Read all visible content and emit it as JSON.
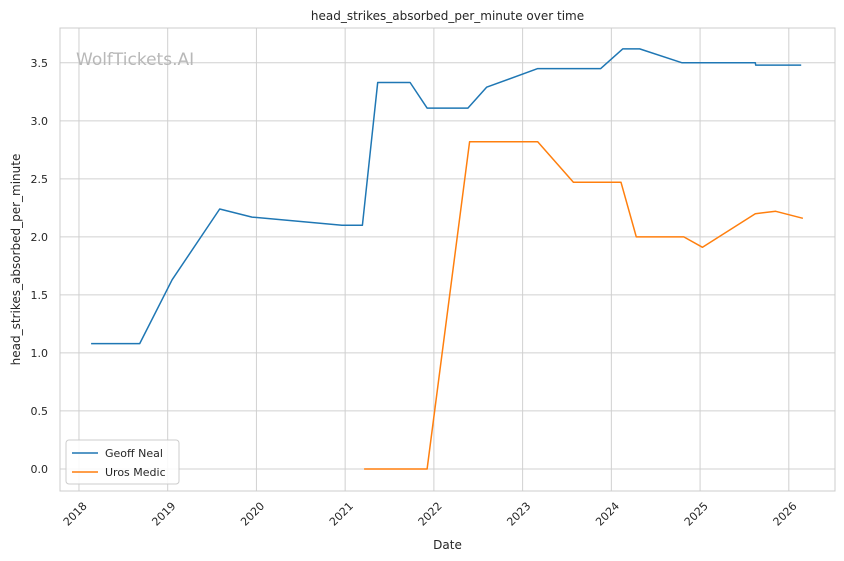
{
  "chart_data": {
    "type": "line",
    "title": "head_strikes_absorbed_per_minute over time",
    "xlabel": "Date",
    "ylabel": "head_strikes_absorbed_per_minute",
    "watermark": "WolfTickets.AI",
    "x_ticks": [
      "2018",
      "2019",
      "2020",
      "2021",
      "2022",
      "2023",
      "2024",
      "2025",
      "2026"
    ],
    "y_ticks": [
      "0.0",
      "0.5",
      "1.0",
      "1.5",
      "2.0",
      "2.5",
      "3.0",
      "3.5"
    ],
    "xlim": [
      "2017-10-15",
      "2026-07-10"
    ],
    "ylim": [
      -0.19,
      3.8
    ],
    "grid": true,
    "legend_position": "lower-left",
    "series": [
      {
        "name": "Geoff Neal",
        "color": "#1f77b4",
        "points": [
          [
            "2018-02-20",
            1.08
          ],
          [
            "2018-09-08",
            1.08
          ],
          [
            "2019-01-19",
            1.63
          ],
          [
            "2019-08-03",
            2.24
          ],
          [
            "2019-12-14",
            2.17
          ],
          [
            "2020-12-19",
            2.1
          ],
          [
            "2021-03-13",
            2.1
          ],
          [
            "2021-05-15",
            3.33
          ],
          [
            "2021-09-25",
            3.33
          ],
          [
            "2021-12-04",
            3.11
          ],
          [
            "2022-05-21",
            3.11
          ],
          [
            "2022-08-06",
            3.29
          ],
          [
            "2023-03-04",
            3.45
          ],
          [
            "2023-11-18",
            3.45
          ],
          [
            "2024-02-17",
            3.62
          ],
          [
            "2024-04-27",
            3.62
          ],
          [
            "2024-10-19",
            3.5
          ],
          [
            "2025-08-16",
            3.5
          ],
          [
            "2025-08-18",
            3.48
          ],
          [
            "2026-02-21",
            3.48
          ]
        ]
      },
      {
        "name": "Uros Medic",
        "color": "#ff7f0e",
        "points": [
          [
            "2021-03-20",
            0.0
          ],
          [
            "2021-12-04",
            0.0
          ],
          [
            "2022-05-28",
            2.82
          ],
          [
            "2023-03-04",
            2.82
          ],
          [
            "2023-07-29",
            2.47
          ],
          [
            "2024-02-10",
            2.47
          ],
          [
            "2024-04-13",
            2.0
          ],
          [
            "2024-10-26",
            2.0
          ],
          [
            "2025-01-11",
            1.91
          ],
          [
            "2025-08-16",
            2.2
          ],
          [
            "2025-11-08",
            2.22
          ],
          [
            "2026-02-28",
            2.16
          ]
        ]
      }
    ]
  }
}
